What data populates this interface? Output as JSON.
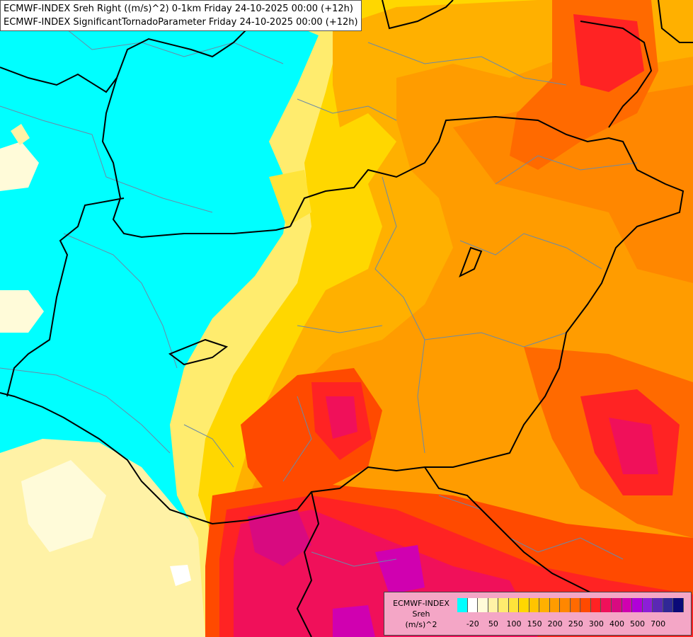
{
  "map_titles": [
    "ECMWF-INDEX Sreh Right ((m/s)^2) 0-1km Friday 24-10-2025 00:00 (+12h)",
    "ECMWF-INDEX SignificantTornadoParameter Friday 24-10-2025 00:00 (+12h)"
  ],
  "legend": {
    "title": "ECMWF-INDEX",
    "variable": "Sreh",
    "units": "(m/s)^2",
    "colors": [
      "#00ffff",
      "#ffffff",
      "#fffbd9",
      "#fff2a6",
      "#ffec6e",
      "#ffe43a",
      "#ffd700",
      "#ffc400",
      "#ffb000",
      "#ff9c00",
      "#ff8700",
      "#ff6a00",
      "#ff4a00",
      "#ff2323",
      "#f0105a",
      "#d80a80",
      "#d000b0",
      "#b000d8",
      "#8c1ed8",
      "#5a28b4",
      "#302896",
      "#0a0a78"
    ],
    "ticks": [
      "-20",
      "50",
      "100",
      "150",
      "200",
      "250",
      "300",
      "400",
      "500",
      "700"
    ]
  },
  "colors": {
    "sea": "#00ffff",
    "border": "#000000",
    "region": "#6a8aa8"
  }
}
